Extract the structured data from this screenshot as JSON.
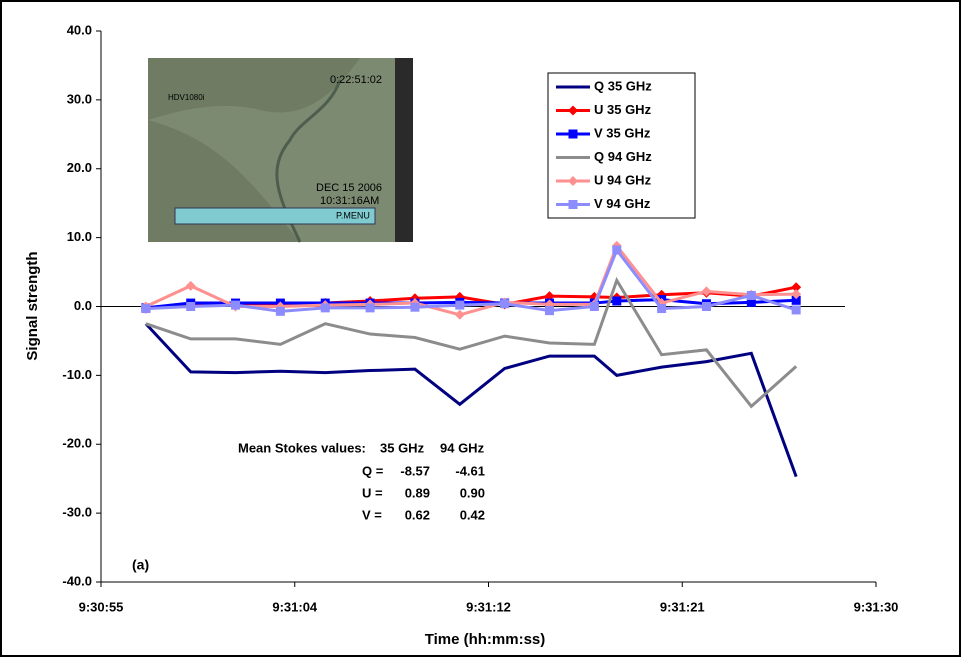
{
  "chart_data": {
    "type": "line",
    "xlabel": "Time (hh:mm:ss)",
    "ylabel": "Signal strength",
    "x": [
      57,
      59,
      61,
      63,
      65,
      67,
      69,
      71,
      73,
      75,
      77,
      78,
      80,
      82,
      84,
      86
    ],
    "series": [
      {
        "name": "Q 35 GHz",
        "color": "#000080",
        "marker": "none",
        "values": [
          -2.5,
          -9.5,
          -9.6,
          -9.4,
          -9.6,
          -9.3,
          -9.1,
          -14.2,
          -9.0,
          -7.2,
          -7.2,
          -10.0,
          -8.8,
          -8.0,
          -6.8,
          -24.7
        ]
      },
      {
        "name": "U 35 GHz",
        "color": "#ff0000",
        "marker": "diamond",
        "values": [
          -0.3,
          0.3,
          0.2,
          0.3,
          0.5,
          0.8,
          1.2,
          1.4,
          0.3,
          1.5,
          1.4,
          1.3,
          1.7,
          2.0,
          1.5,
          2.8
        ]
      },
      {
        "name": "V 35 GHz",
        "color": "#0000ff",
        "marker": "square",
        "values": [
          -0.2,
          0.5,
          0.5,
          0.5,
          0.5,
          0.5,
          0.5,
          0.6,
          0.5,
          0.5,
          0.5,
          0.8,
          1.0,
          0.4,
          0.6,
          0.9
        ]
      },
      {
        "name": "Q 94 GHz",
        "color": "#8c8c8c",
        "marker": "none",
        "values": [
          -2.5,
          -4.7,
          -4.7,
          -5.5,
          -2.5,
          -4.0,
          -4.5,
          -6.2,
          -4.3,
          -5.3,
          -5.5,
          3.8,
          -7.0,
          -6.3,
          -14.5,
          -8.7
        ]
      },
      {
        "name": "U 94 GHz",
        "color": "#ff9090",
        "marker": "diamond",
        "values": [
          0.0,
          3.0,
          0.0,
          0.0,
          0.2,
          0.3,
          0.5,
          -1.2,
          0.6,
          0.3,
          0.3,
          8.8,
          0.5,
          2.2,
          1.7,
          1.8
        ]
      },
      {
        "name": "V 94 GHz",
        "color": "#8c8cff",
        "marker": "square",
        "values": [
          -0.3,
          0.0,
          0.2,
          -0.7,
          -0.2,
          -0.2,
          -0.1,
          0.2,
          0.4,
          -0.6,
          0.0,
          8.2,
          -0.3,
          0.0,
          1.6,
          -0.5
        ]
      }
    ],
    "xlim": [
      55,
      89.56
    ],
    "xticks": [
      {
        "value": 55,
        "label": "9:30:55"
      },
      {
        "value": 63.64,
        "label": "9:31:04"
      },
      {
        "value": 72.28,
        "label": "9:31:12"
      },
      {
        "value": 80.92,
        "label": "9:31:21"
      },
      {
        "value": 89.56,
        "label": "9:31:30"
      }
    ],
    "ylim": [
      -40,
      40
    ],
    "yticks": [
      {
        "value": -40,
        "label": "-40.0"
      },
      {
        "value": -30,
        "label": "-30.0"
      },
      {
        "value": -20,
        "label": "-20.0"
      },
      {
        "value": -10,
        "label": "-10.0"
      },
      {
        "value": 0,
        "label": "0.0"
      },
      {
        "value": 10,
        "label": "10.0"
      },
      {
        "value": 20,
        "label": "20.0"
      },
      {
        "value": 30,
        "label": "30.0"
      },
      {
        "value": 40,
        "label": "40.0"
      }
    ],
    "legend": "upper right",
    "panel_label": "(a)",
    "mean_stokes": {
      "title": "Mean Stokes values:",
      "headers": [
        "35 GHz",
        "94 GHz"
      ],
      "rows": [
        {
          "label": "Q =",
          "values": [
            "-8.57",
            "-4.61"
          ]
        },
        {
          "label": "U =",
          "values": [
            "0.89",
            "0.90"
          ]
        },
        {
          "label": "V =",
          "values": [
            "0.62",
            "0.42"
          ]
        }
      ]
    },
    "inset_image_texts": [
      "0:22:51:02",
      "HDV1080i",
      "DEC 15 2006",
      "10:31:16AM",
      "P.MENU"
    ]
  }
}
